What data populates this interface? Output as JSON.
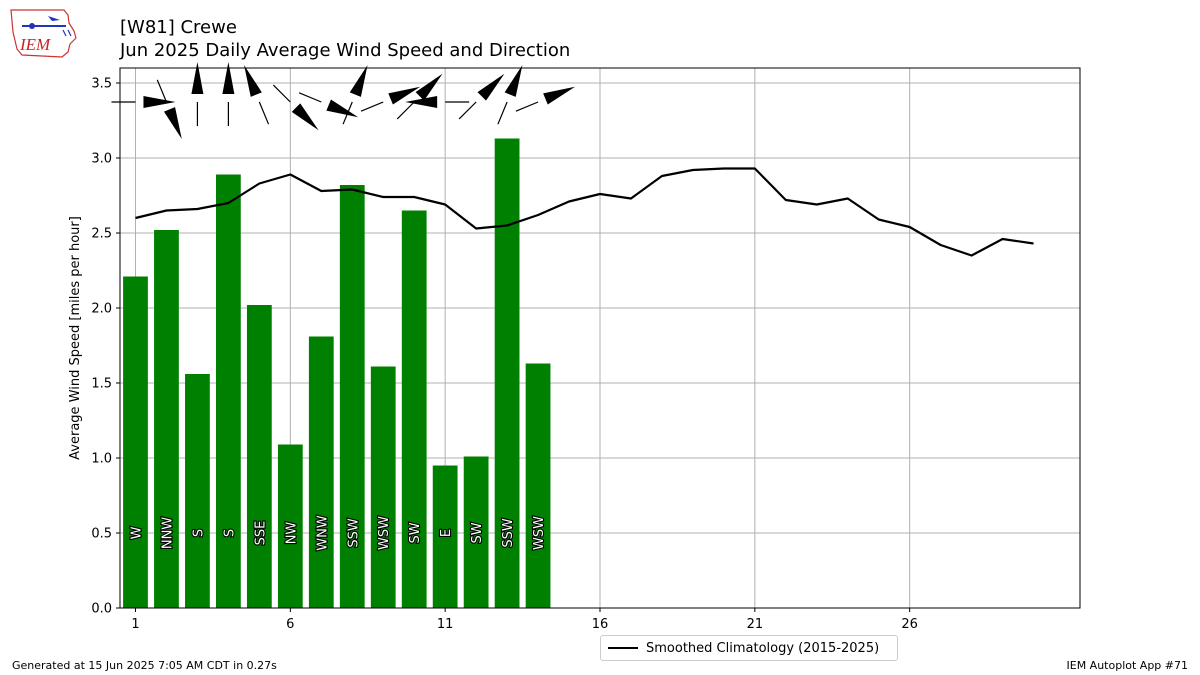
{
  "header": {
    "title_line1": "[W81] Crewe",
    "title_line2": "Jun 2025 Daily Average Wind Speed and Direction"
  },
  "logo": {
    "text": "IEM"
  },
  "footer": {
    "left": "Generated at 15 Jun 2025 7:05 AM CDT in 0.27s",
    "right": "IEM Autoplot App #71"
  },
  "colors": {
    "bar": "#008000",
    "climatology": "#000000",
    "grid": "#b0b0b0"
  },
  "chart_data": {
    "type": "bar",
    "ylabel": "Average Wind Speed [miles per hour]",
    "ylim": [
      0,
      3.6
    ],
    "xlim": [
      0.5,
      31.5
    ],
    "yticks": [
      0.0,
      0.5,
      1.0,
      1.5,
      2.0,
      2.5,
      3.0,
      3.5
    ],
    "xticks": [
      1,
      6,
      11,
      16,
      21,
      26
    ],
    "grid": true,
    "legend_position": "bottom-center",
    "days": [
      1,
      2,
      3,
      4,
      5,
      6,
      7,
      8,
      9,
      10,
      11,
      12,
      13,
      14
    ],
    "values": [
      2.21,
      2.52,
      1.56,
      2.89,
      2.02,
      1.09,
      1.81,
      2.82,
      1.61,
      2.65,
      0.95,
      1.01,
      3.13,
      1.63
    ],
    "directions": [
      "W",
      "NNW",
      "S",
      "S",
      "SSE",
      "NW",
      "WNW",
      "SSW",
      "WSW",
      "SW",
      "E",
      "SW",
      "SSW",
      "WSW"
    ],
    "direction_degrees": [
      270,
      337.5,
      180,
      180,
      157.5,
      315,
      292.5,
      202.5,
      247.5,
      225,
      90,
      225,
      202.5,
      247.5
    ],
    "series": [
      {
        "name": "Smoothed Climatology (2015-2025)",
        "x": [
          1,
          2,
          3,
          4,
          5,
          6,
          7,
          8,
          9,
          10,
          11,
          12,
          13,
          14,
          15,
          16,
          17,
          18,
          19,
          20,
          21,
          22,
          23,
          24,
          25,
          26,
          27,
          28,
          29,
          30
        ],
        "values": [
          2.6,
          2.65,
          2.66,
          2.7,
          2.83,
          2.89,
          2.78,
          2.79,
          2.74,
          2.74,
          2.69,
          2.53,
          2.55,
          2.62,
          2.71,
          2.76,
          2.73,
          2.88,
          2.92,
          2.93,
          2.93,
          2.72,
          2.69,
          2.73,
          2.59,
          2.54,
          2.42,
          2.35,
          2.46,
          2.43
        ]
      }
    ]
  }
}
